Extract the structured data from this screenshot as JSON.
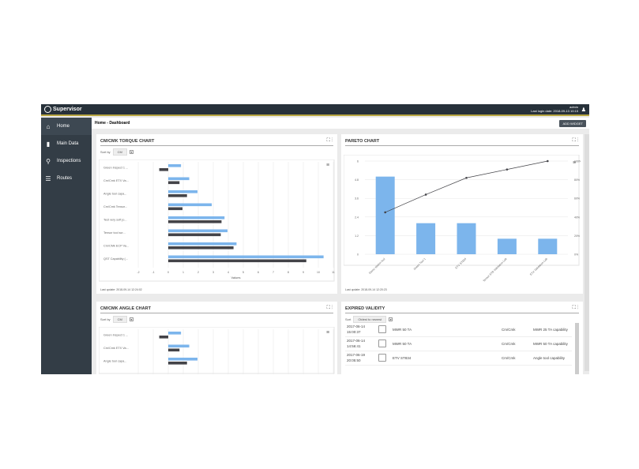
{
  "header": {
    "app_name": "Supervisor",
    "user": "admin",
    "last_login": "Last login date: 2018-09-13 10:15",
    "user_icon": "user-icon"
  },
  "sidebar": {
    "items": [
      {
        "label": "Home",
        "icon": "home-icon"
      },
      {
        "label": "Main Data",
        "icon": "books-icon"
      },
      {
        "label": "Inspections",
        "icon": "search-gear-icon"
      },
      {
        "label": "Routes",
        "icon": "list-check-icon"
      }
    ]
  },
  "breadcrumb": "Home - Dashboard",
  "add_widget": "ADD WIDGET",
  "torque": {
    "title": "CM/CMK TORQUE CHART",
    "sort_label": "Sort by",
    "sort_value": "CM",
    "updated": "Last update: 2018-09-14 12:24:02"
  },
  "pareto": {
    "title": "PARETO CHART",
    "updated": "Last update: 2018-09-14 12:20:23"
  },
  "angle": {
    "title": "CM/CMK ANGLE CHART",
    "sort_label": "Sort by",
    "sort_value": "CM"
  },
  "expired": {
    "title": "EXPIRED VALIDITY",
    "sort_label": "Sort",
    "sort_value": "Oldest to newest",
    "rows": [
      {
        "date": "2017-06-14",
        "time": "15:00:37",
        "tool": "MWR 50 TA",
        "type": "Cm/Cmk",
        "name": "MWR 25 TA capability"
      },
      {
        "date": "2017-06-14",
        "time": "14:56:41",
        "tool": "MWR 50 TA",
        "type": "Cm/Cmk",
        "name": "MWR 50 TA capability"
      },
      {
        "date": "2017-06-19",
        "time": "20:05:50",
        "tool": "ETV ST834",
        "type": "Cm/Cmk",
        "name": "Angle tool capability"
      }
    ]
  },
  "chart_data": [
    {
      "type": "bar",
      "orientation": "horizontal",
      "categories": [
        "Green Inspect 1 ...",
        "Cm/Cmk ETX Va...",
        "Angle tool capa...",
        "Cm/Cmk Tensor...",
        "Test very soft jo...",
        "Tensor tool scr...",
        "Cm/CMk ECP Va...",
        "QST Capability (..."
      ],
      "series": [
        {
          "values": [
            0.85,
            1.4,
            1.95,
            2.9,
            3.75,
            3.95,
            4.55,
            10.35
          ],
          "color": "#7cb5ec"
        },
        {
          "values": [
            -0.6,
            0.75,
            1.25,
            0.95,
            3.55,
            3.5,
            4.35,
            9.2
          ],
          "color": "#434348"
        }
      ],
      "xlabel": "Values",
      "xlim": [
        -2,
        11
      ],
      "xticks": [
        -2,
        -1,
        0,
        1,
        2,
        3,
        4,
        5,
        6,
        7,
        8,
        9,
        10,
        11
      ],
      "grid": true
    },
    {
      "type": "bar",
      "combo": "pareto",
      "categories": [
        "Demo station tool",
        "Green Tool 1",
        "ETV ST834",
        "Tensor STB Validation Lab",
        "ETX Validation Lab"
      ],
      "values": [
        5,
        2,
        2,
        1,
        1
      ],
      "cumulative_percent": [
        45,
        64,
        82,
        91,
        100
      ],
      "ylim": [
        0,
        6
      ],
      "yticks": [
        "0",
        "1.2",
        "2.4",
        "3.6",
        "4.8",
        "6"
      ],
      "y2ticks": [
        "0%",
        "20%",
        "40%",
        "60%",
        "80%",
        "100%"
      ],
      "bar_color": "#7cb5ec",
      "line_color": "#434348"
    },
    {
      "type": "bar",
      "orientation": "horizontal",
      "categories": [
        "Green Inspect 1 ...",
        "Cm/Cmk ETX Va...",
        "Angle tool capa..."
      ],
      "series": [
        {
          "values": [
            0.85,
            1.4,
            1.95
          ],
          "color": "#7cb5ec"
        },
        {
          "values": [
            -0.6,
            0.75,
            1.25
          ],
          "color": "#434348"
        }
      ],
      "xlim": [
        -2,
        11
      ]
    }
  ]
}
